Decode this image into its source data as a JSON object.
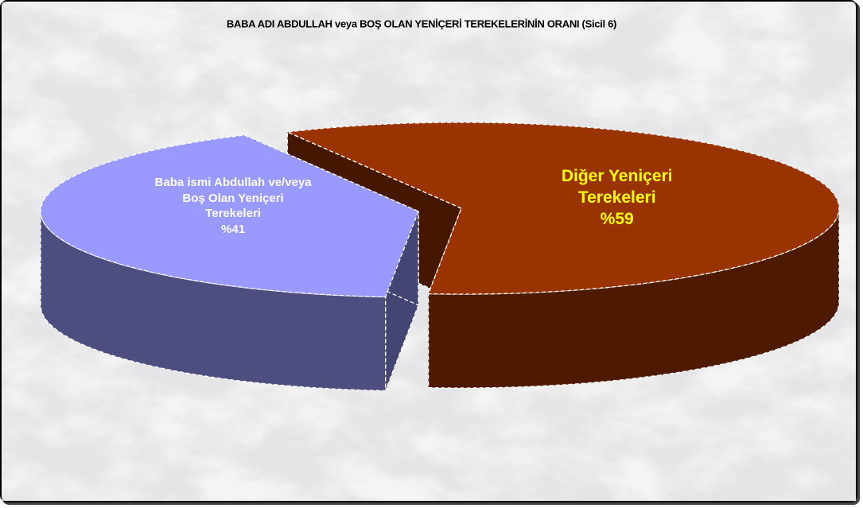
{
  "chart_data": {
    "type": "pie3d",
    "title": "BABA ADI ABDULLAH veya BOŞ OLAN YENİÇERİ TEREKELERİNİN ORANI (Sicil 6)",
    "categories": [
      "Baba ismi Abdullah ve/veya Boş Olan Yeniçeri Terekeleri",
      "Diğer Yeniçeri Terekeleri"
    ],
    "values": [
      41,
      59
    ],
    "value_labels": [
      "%41",
      "%59"
    ],
    "colors": [
      "#9999ff",
      "#993300"
    ],
    "label_colors": [
      "#ffffff",
      "#ffff00"
    ],
    "exploded": [
      true,
      false
    ]
  }
}
